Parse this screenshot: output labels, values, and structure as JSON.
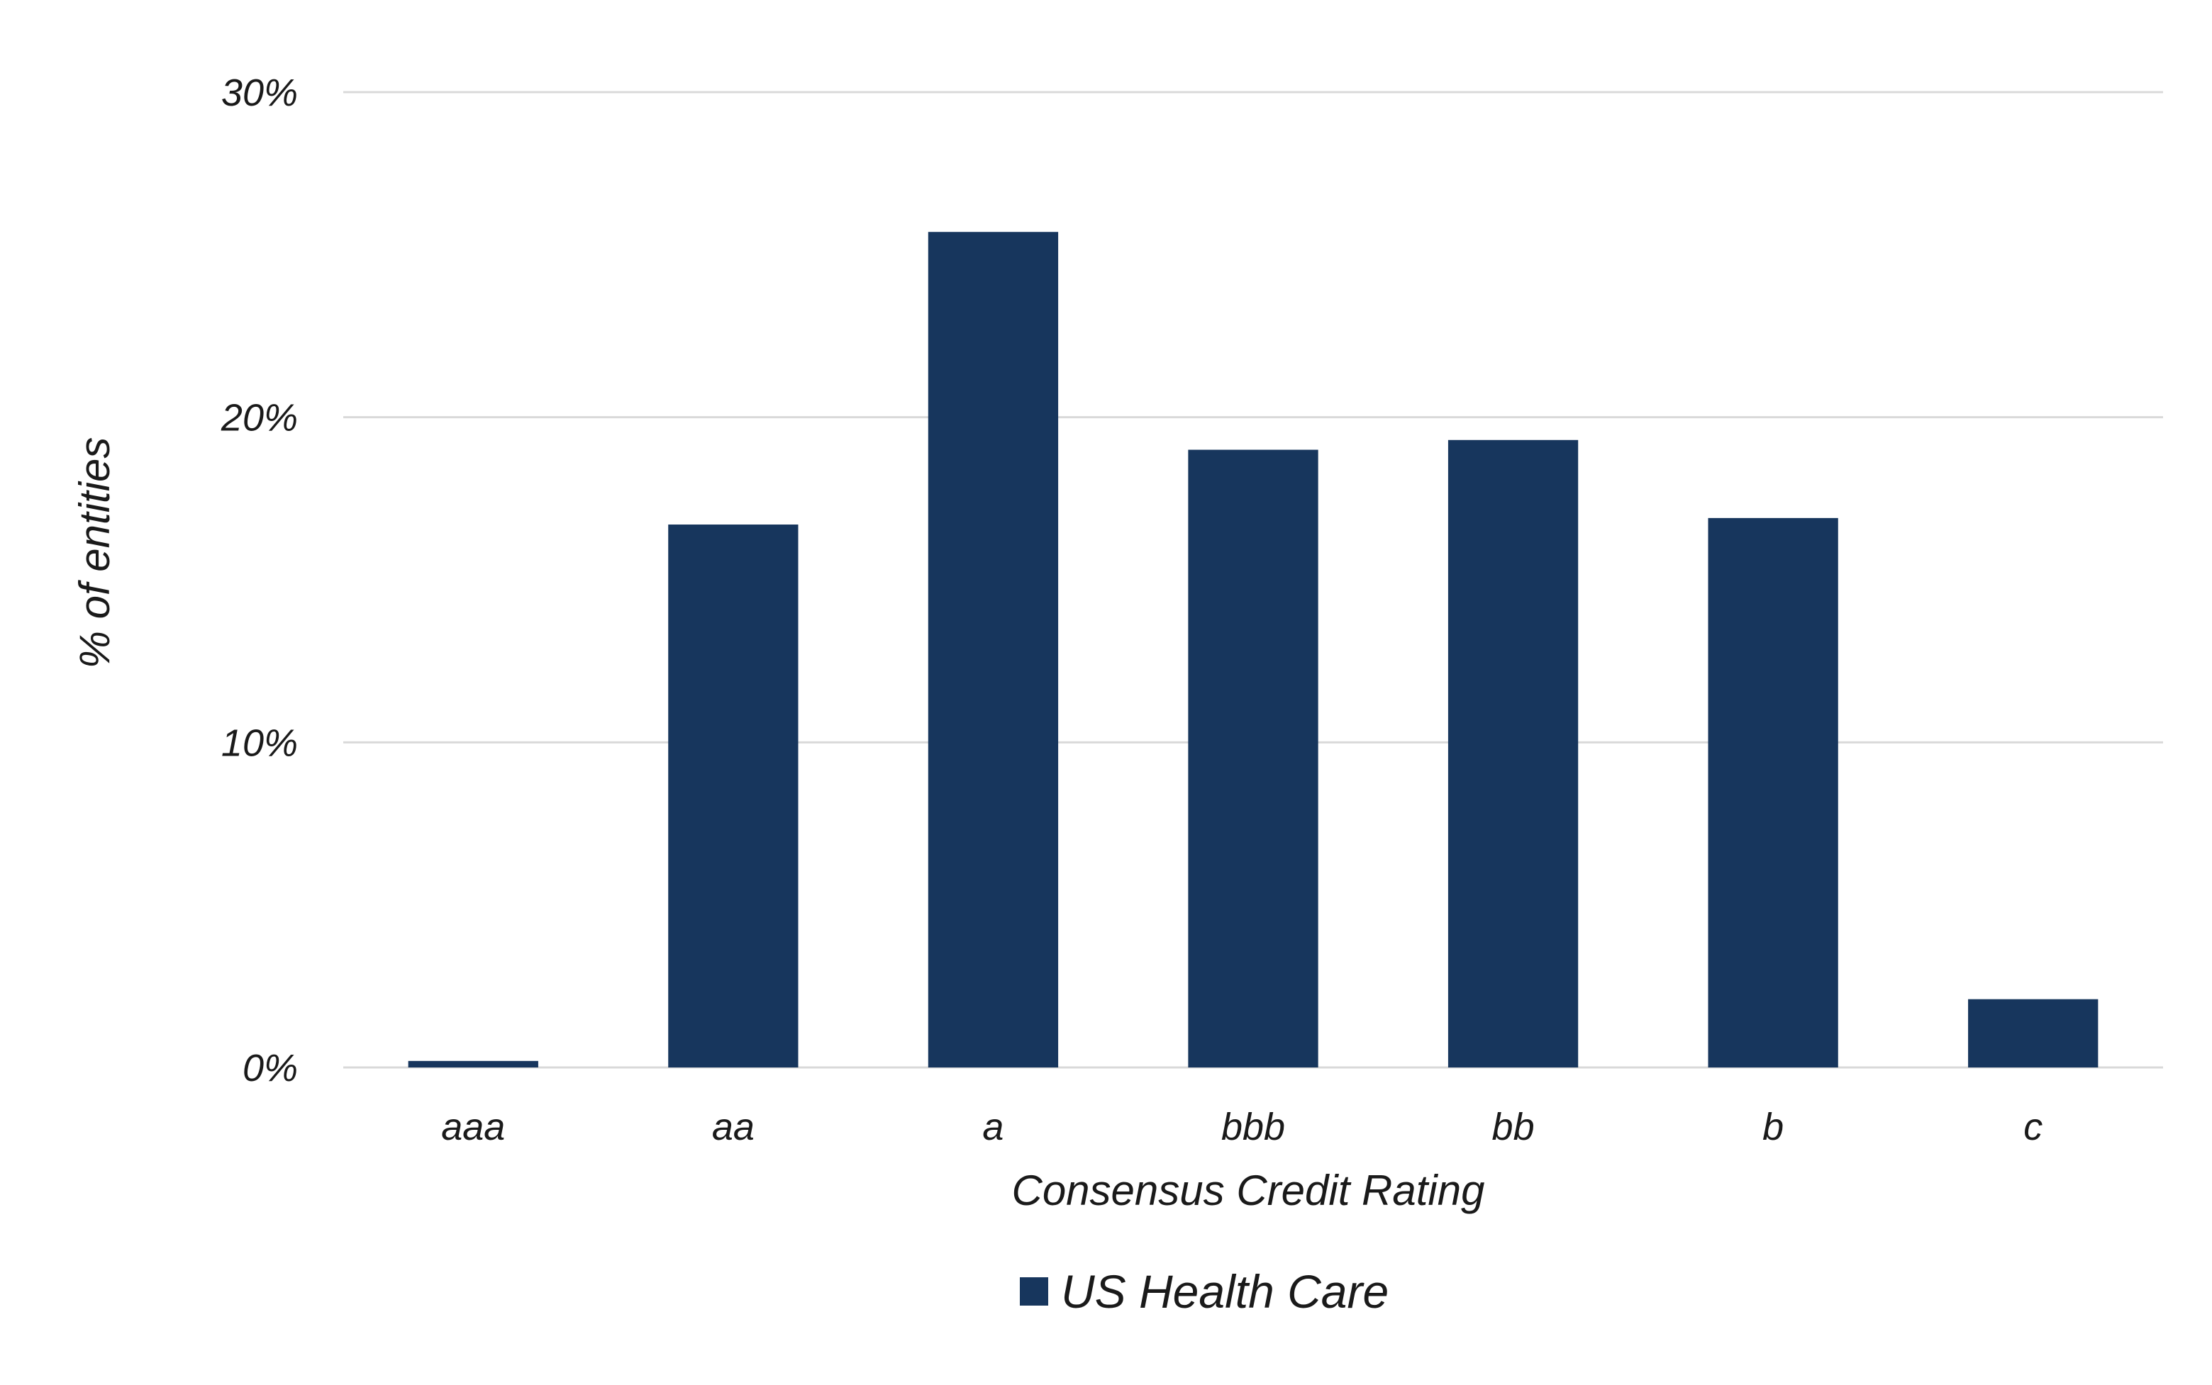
{
  "chart_data": {
    "type": "bar",
    "categories": [
      "aaa",
      "aa",
      "a",
      "bbb",
      "bb",
      "b",
      "c"
    ],
    "series": [
      {
        "name": "US Health Care",
        "values": [
          0.2,
          16.7,
          25.7,
          19.0,
          19.3,
          16.9,
          2.1
        ],
        "color": "#17365d"
      }
    ],
    "ylim": [
      0,
      30
    ],
    "yticks": [
      0,
      10,
      20,
      30
    ],
    "ytick_labels": [
      "0%",
      "10%",
      "20%",
      "30%"
    ],
    "xlabel": "Consensus Credit Rating",
    "ylabel": "% of entities",
    "grid": true,
    "legend_position": "bottom"
  }
}
